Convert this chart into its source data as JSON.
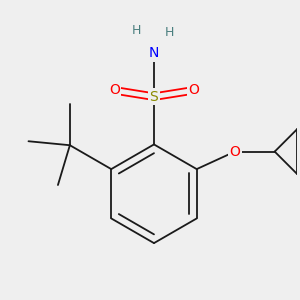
{
  "background_color": "#efefef",
  "atom_colors": {
    "S": "#8b8b00",
    "O": "#ff0000",
    "N": "#0000ff",
    "C": "#1a1a1a",
    "H": "#4a7f7f"
  },
  "bond_color": "#1a1a1a",
  "bond_lw": 1.3,
  "fig_bg": "#efefef"
}
